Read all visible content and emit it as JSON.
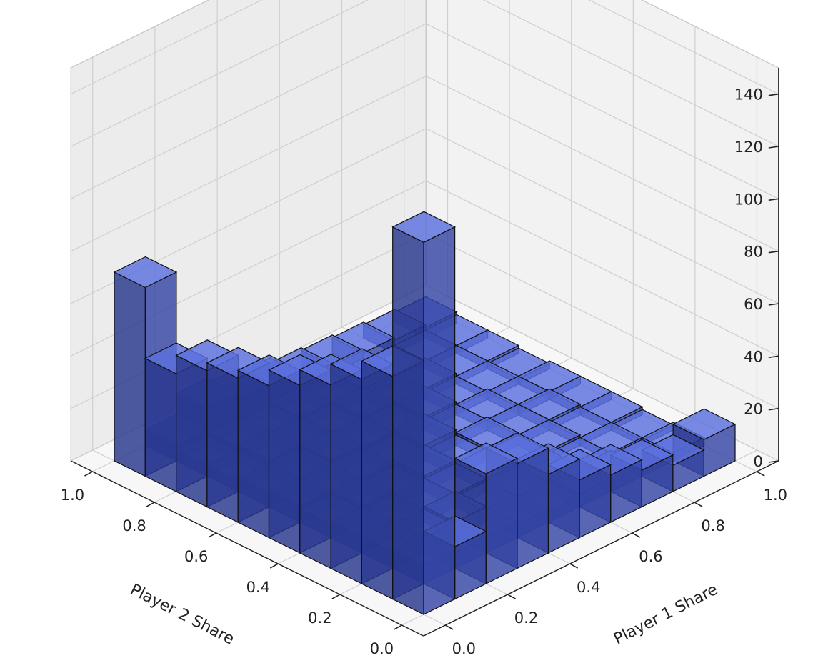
{
  "chart_data": {
    "type": "bar3d",
    "xlabel": "Player 1 Share",
    "ylabel": "Player 2 Share",
    "zlabel": "",
    "x_ticks": [
      "0.0",
      "0.2",
      "0.4",
      "0.6",
      "0.8",
      "1.0"
    ],
    "y_ticks": [
      "0.0",
      "0.2",
      "0.4",
      "0.6",
      "0.8",
      "1.0"
    ],
    "z_ticks": [
      "0",
      "20",
      "40",
      "60",
      "80",
      "100",
      "120",
      "140"
    ],
    "zlim": [
      0,
      150
    ],
    "bins": [
      0.0,
      0.1,
      0.2,
      0.3,
      0.4,
      0.5,
      0.6,
      0.7,
      0.8,
      0.9,
      1.0
    ],
    "grid": true,
    "bar_color": "#3a50c0",
    "edge_color": "#111111",
    "heights": [
      [
        142,
        85,
        78,
        70,
        64,
        58,
        55,
        52,
        45,
        72
      ],
      [
        20,
        7,
        6,
        6,
        5,
        6,
        5,
        4,
        4,
        6
      ],
      [
        42,
        6,
        5,
        5,
        6,
        5,
        5,
        6,
        5,
        14
      ],
      [
        40,
        6,
        6,
        5,
        4,
        5,
        6,
        5,
        4,
        12
      ],
      [
        30,
        5,
        4,
        5,
        6,
        4,
        5,
        4,
        5,
        10
      ],
      [
        22,
        4,
        4,
        5,
        4,
        6,
        4,
        5,
        4,
        8
      ],
      [
        18,
        5,
        4,
        4,
        5,
        4,
        5,
        4,
        4,
        7
      ],
      [
        14,
        4,
        3,
        4,
        4,
        4,
        3,
        4,
        3,
        6
      ],
      [
        10,
        3,
        3,
        3,
        4,
        3,
        3,
        3,
        3,
        5
      ],
      [
        14,
        3,
        2,
        3,
        3,
        3,
        2,
        3,
        3,
        4
      ]
    ]
  }
}
